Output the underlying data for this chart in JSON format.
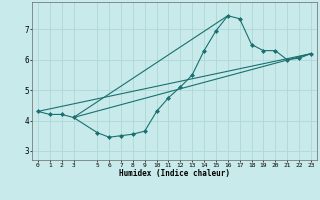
{
  "xlabel": "Humidex (Indice chaleur)",
  "background_color": "#c8eaea",
  "grid_color": "#b0d8d8",
  "line_color": "#1a7070",
  "xlim": [
    -0.5,
    23.5
  ],
  "ylim": [
    2.7,
    7.9
  ],
  "xticks": [
    0,
    1,
    2,
    3,
    5,
    6,
    7,
    8,
    9,
    10,
    11,
    12,
    13,
    14,
    15,
    16,
    17,
    18,
    19,
    20,
    21,
    22,
    23
  ],
  "yticks": [
    3,
    4,
    5,
    6,
    7
  ],
  "series": [
    {
      "x": [
        0,
        1,
        2,
        3,
        5,
        6,
        7,
        8,
        9,
        10,
        11,
        12,
        13,
        14,
        15,
        16,
        17,
        18,
        19,
        20,
        21,
        22,
        23
      ],
      "y": [
        4.3,
        4.2,
        4.2,
        4.1,
        3.6,
        3.45,
        3.5,
        3.55,
        3.65,
        4.3,
        4.75,
        5.1,
        5.5,
        6.3,
        6.95,
        7.45,
        7.35,
        6.5,
        6.3,
        6.3,
        6.0,
        6.05,
        6.2
      ],
      "has_markers": true
    },
    {
      "x": [
        0,
        23
      ],
      "y": [
        4.3,
        6.2
      ],
      "has_markers": false
    },
    {
      "x": [
        3,
        23
      ],
      "y": [
        4.1,
        6.2
      ],
      "has_markers": false
    },
    {
      "x": [
        3,
        16
      ],
      "y": [
        4.1,
        7.45
      ],
      "has_markers": false
    }
  ]
}
